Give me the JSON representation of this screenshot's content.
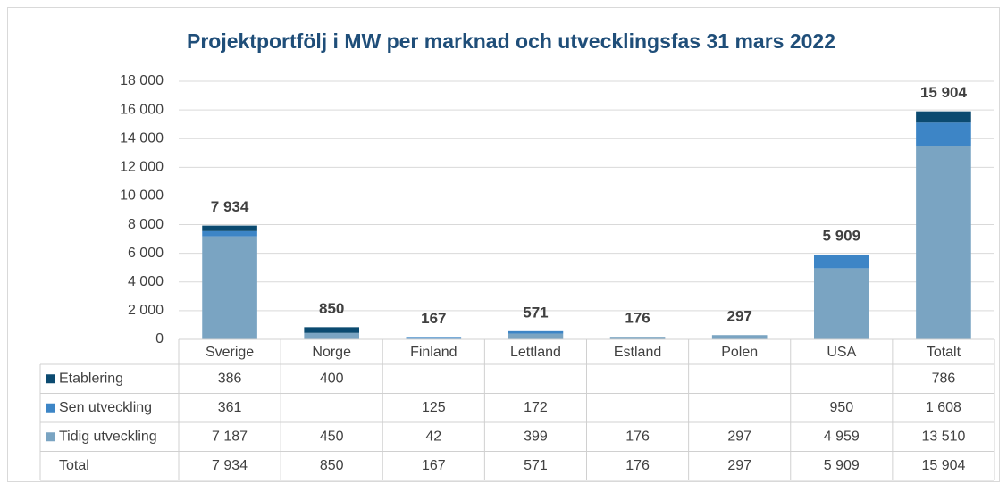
{
  "chart_data": {
    "type": "bar",
    "stacked": true,
    "title": "Projektportfölj i MW per marknad och utvecklingsfas 31 mars 2022",
    "categories": [
      "Sverige",
      "Norge",
      "Finland",
      "Lettland",
      "Estland",
      "Polen",
      "USA",
      "Totalt"
    ],
    "series": [
      {
        "name": "Tidig utveckling",
        "color": "#7aa4c2",
        "values": [
          7187,
          450,
          42,
          399,
          176,
          297,
          4959,
          13510
        ],
        "value_labels": [
          "7 187",
          "450",
          "42",
          "399",
          "176",
          "297",
          "4 959",
          "13 510"
        ]
      },
      {
        "name": "Sen utveckling",
        "color": "#3d85c6",
        "values": [
          361,
          null,
          125,
          172,
          null,
          null,
          950,
          1608
        ],
        "value_labels": [
          "361",
          null,
          "125",
          "172",
          null,
          null,
          "950",
          "1 608"
        ]
      },
      {
        "name": "Etablering",
        "color": "#0b4a70",
        "values": [
          386,
          400,
          null,
          null,
          null,
          null,
          null,
          786
        ],
        "value_labels": [
          "386",
          "400",
          null,
          null,
          null,
          null,
          null,
          "786"
        ]
      }
    ],
    "totals": {
      "name": "Total",
      "values": [
        7934,
        850,
        167,
        571,
        176,
        297,
        5909,
        15904
      ],
      "value_labels": [
        "7 934",
        "850",
        "167",
        "571",
        "176",
        "297",
        "5 909",
        "15 904"
      ]
    },
    "ylim": [
      0,
      18000
    ],
    "yticks": [
      0,
      {
        "value": 2000,
        "label": "2 000"
      },
      {
        "value": 4000,
        "label": "4 000"
      },
      {
        "value": 6000,
        "label": "6 000"
      },
      {
        "value": 8000,
        "label": "8 000"
      },
      {
        "value": 10000,
        "label": "10 000"
      },
      {
        "value": 12000,
        "label": "12 000"
      },
      {
        "value": 14000,
        "label": "14 000"
      },
      {
        "value": 16000,
        "label": "16 000"
      },
      {
        "value": 18000,
        "label": "18 000"
      }
    ],
    "grid": true
  }
}
